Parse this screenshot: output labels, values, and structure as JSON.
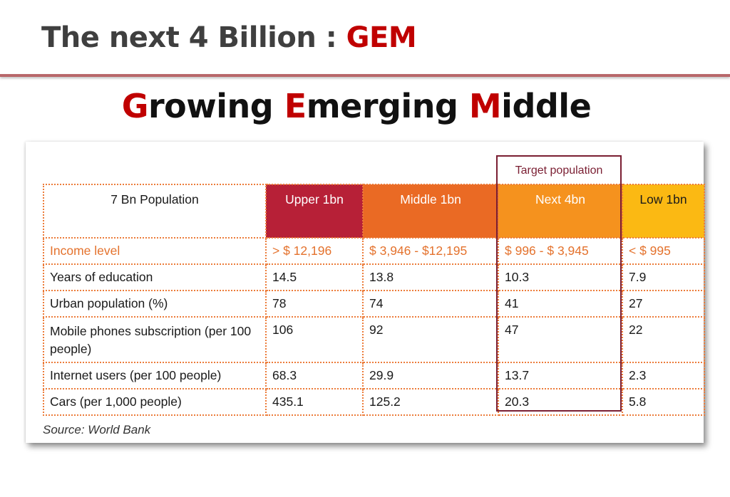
{
  "title": {
    "main": "The next 4 Billion : ",
    "accent": "GEM"
  },
  "subtitle": {
    "g_cap": "G",
    "g_rest": "rowing ",
    "e_cap": "E",
    "e_rest": "merging ",
    "m_cap": "M",
    "m_rest": "iddle"
  },
  "target_label": "Target population",
  "table": {
    "headers": [
      "7 Bn Population",
      "Upper 1bn",
      "Middle 1bn",
      "Next 4bn",
      "Low 1bn"
    ],
    "rows": [
      {
        "label": "Income level",
        "values": [
          "> $ 12,196",
          "$ 3,946 - $12,195",
          "$ 996 - $ 3,945",
          "< $ 995"
        ]
      },
      {
        "label": "Years of education",
        "values": [
          "14.5",
          "13.8",
          "10.3",
          "7.9"
        ]
      },
      {
        "label": "Urban population (%)",
        "values": [
          "78",
          "74",
          "41",
          "27"
        ]
      },
      {
        "label": "Mobile phones subscription (per 100 people)",
        "values": [
          "106",
          "92",
          "47",
          "22"
        ]
      },
      {
        "label": "Internet users (per 100 people)",
        "values": [
          "68.3",
          "29.9",
          "13.7",
          "2.3"
        ]
      },
      {
        "label": "Cars (per 1,000 people)",
        "values": [
          "435.1",
          "125.2",
          "20.3",
          "5.8"
        ]
      }
    ]
  },
  "source": "Source: World Bank",
  "colors": {
    "accent_red": "#c00000",
    "upper": "#b72037",
    "middle": "#ea6a24",
    "next": "#f5921e",
    "low": "#fbb913",
    "target_border": "#7a1e32",
    "income_text": "#e4722d"
  }
}
